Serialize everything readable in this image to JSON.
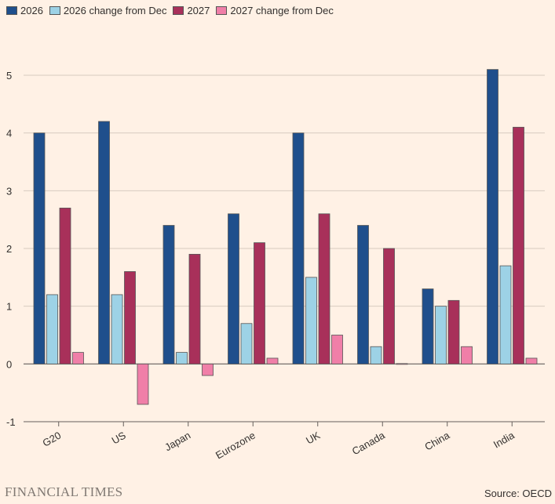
{
  "colors": {
    "background": "#fff1e5",
    "grid": "#d7cbc0",
    "axis": "#66605c",
    "text": "#33302e"
  },
  "chart_data": {
    "type": "bar",
    "categories": [
      "G20",
      "US",
      "Japan",
      "Eurozone",
      "UK",
      "Canada",
      "China",
      "India"
    ],
    "series": [
      {
        "name": "2026",
        "color": "#1f4f8c",
        "values": [
          4.0,
          4.2,
          2.4,
          2.6,
          4.0,
          2.4,
          1.3,
          5.1
        ]
      },
      {
        "name": "2026 change from Dec",
        "color": "#9dd2e6",
        "values": [
          1.2,
          1.2,
          0.2,
          0.7,
          1.5,
          0.3,
          1.0,
          1.7
        ]
      },
      {
        "name": "2027",
        "color": "#a8305a",
        "values": [
          2.7,
          1.6,
          1.9,
          2.1,
          2.6,
          2.0,
          1.1,
          4.1
        ]
      },
      {
        "name": "2027 change from Dec",
        "color": "#f07fa8",
        "values": [
          0.2,
          -0.7,
          -0.2,
          0.1,
          0.5,
          0.0,
          0.3,
          0.1
        ]
      }
    ],
    "ylim": [
      -1,
      5
    ],
    "yticks": [
      -1,
      0,
      1,
      2,
      3,
      4,
      5
    ],
    "grid": true,
    "legend_position": "top-left",
    "title": "",
    "xlabel": "",
    "ylabel": ""
  },
  "footer": {
    "brand": "FINANCIAL TIMES",
    "source": "Source: OECD"
  }
}
